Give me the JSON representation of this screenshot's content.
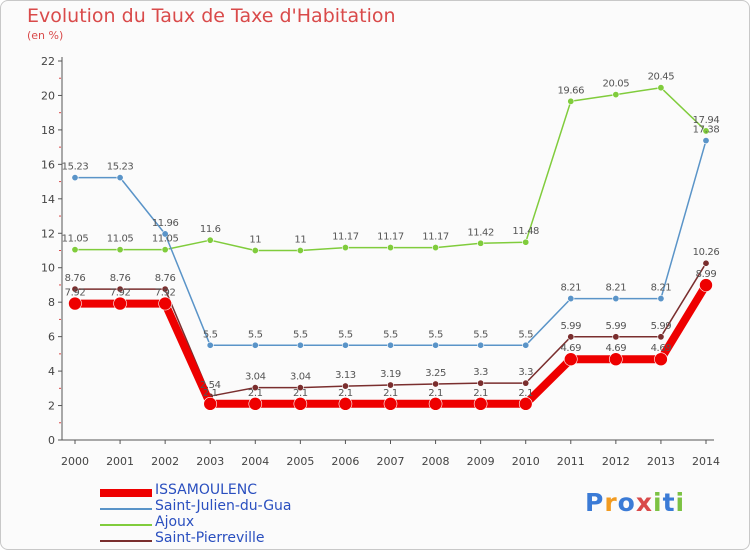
{
  "header": {
    "title": "Evolution du Taux de Taxe d'Habitation",
    "unit": "(en %)"
  },
  "brand": {
    "letters": [
      "P",
      "r",
      "o",
      "x",
      "i",
      "t",
      "i"
    ],
    "colors": [
      "#3b7bd6",
      "#f29b20",
      "#3b7bd6",
      "#d94a4a",
      "#7cc243",
      "#3b7bd6",
      "#7cc243"
    ]
  },
  "chart_data": {
    "type": "line",
    "title": "Evolution du Taux de Taxe d'Habitation",
    "ylabel": "(en %)",
    "xlabel": "",
    "x": [
      "2000",
      "2001",
      "2002",
      "2003",
      "2004",
      "2005",
      "2006",
      "2007",
      "2008",
      "2009",
      "2010",
      "2011",
      "2012",
      "2013",
      "2014"
    ],
    "ylim": [
      0,
      22
    ],
    "yticks": [
      0,
      2,
      4,
      6,
      8,
      10,
      12,
      14,
      16,
      18,
      20,
      22
    ],
    "grid": false,
    "legend_position": "bottom-left",
    "series": [
      {
        "name": "ISSAMOULENC",
        "color": "#ee0000",
        "values": [
          7.92,
          7.92,
          7.92,
          2.1,
          2.1,
          2.1,
          2.1,
          2.1,
          2.1,
          2.1,
          2.1,
          4.69,
          4.69,
          4.69,
          8.99
        ],
        "labels": [
          "7.92",
          "7.92",
          "7.92",
          "2.1",
          "2.1",
          "2.1",
          "2.1",
          "2.1",
          "2.1",
          "2.1",
          "2.1",
          "4.69",
          "4.69",
          "4.69",
          "8.99"
        ]
      },
      {
        "name": "Saint-Julien-du-Gua",
        "color": "#5a94c8",
        "values": [
          15.23,
          15.23,
          11.96,
          5.5,
          5.5,
          5.5,
          5.5,
          5.5,
          5.5,
          5.5,
          5.5,
          8.21,
          8.21,
          8.21,
          17.38
        ],
        "labels": [
          "15.23",
          "15.23",
          "11.96",
          "5.5",
          "5.5",
          "5.5",
          "5.5",
          "5.5",
          "5.5",
          "5.5",
          "5.5",
          "8.21",
          "8.21",
          "8.21",
          "17.38"
        ]
      },
      {
        "name": "Ajoux",
        "color": "#80cc3c",
        "values": [
          11.05,
          11.05,
          11.05,
          11.6,
          11,
          11,
          11.17,
          11.17,
          11.17,
          11.42,
          11.48,
          19.66,
          20.05,
          20.45,
          17.94
        ],
        "labels": [
          "11.05",
          "11.05",
          "11.05",
          "11.6",
          "11",
          "11",
          "11.17",
          "11.17",
          "11.17",
          "11.42",
          "11.48",
          "19.66",
          "20.05",
          "20.45",
          "17.94"
        ]
      },
      {
        "name": "Saint-Pierreville",
        "color": "#7a2e2e",
        "values": [
          8.76,
          8.76,
          8.76,
          2.54,
          3.04,
          3.04,
          3.13,
          3.19,
          3.25,
          3.3,
          3.3,
          5.99,
          5.99,
          5.99,
          10.26
        ],
        "labels": [
          "8.76",
          "8.76",
          "8.76",
          "2.54",
          "3.04",
          "3.04",
          "3.13",
          "3.19",
          "3.25",
          "3.3",
          "3.3",
          "5.99",
          "5.99",
          "5.99",
          "10.26"
        ]
      }
    ]
  }
}
